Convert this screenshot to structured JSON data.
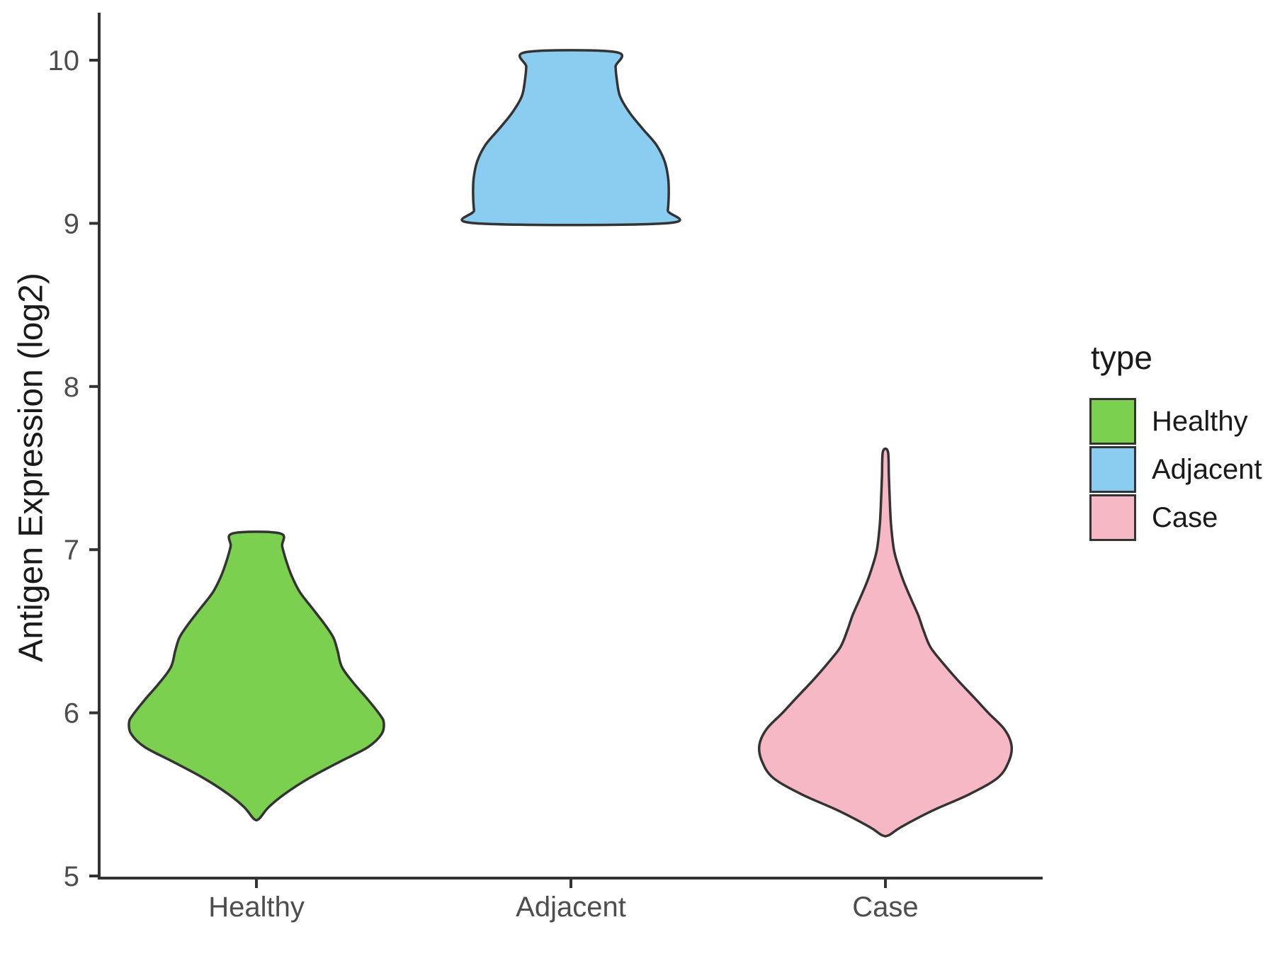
{
  "figure": {
    "background": "#ffffff"
  },
  "chart_data": {
    "type": "violin",
    "title": "",
    "xlabel": "",
    "ylabel": "Antigen Expression (log2)",
    "categories": [
      "Healthy",
      "Adjacent",
      "Case"
    ],
    "yticks": [
      5,
      6,
      7,
      8,
      9,
      10
    ],
    "ylim": [
      5,
      10.3
    ],
    "grid": false,
    "stroke_color": "#333333",
    "axis_color": "#333333",
    "tick_text_color": "#4d4d4d",
    "title_text_color": "#1a1a1a",
    "legend": {
      "title": "type",
      "position": "right",
      "entries": [
        {
          "label": "Healthy",
          "color": "#7cd04f"
        },
        {
          "label": "Adjacent",
          "color": "#8bcdf1"
        },
        {
          "label": "Case",
          "color": "#f5b8c4"
        }
      ]
    },
    "profile_units": "each profile point is [y_value, halfwidth_in_category_axis_units]",
    "series": [
      {
        "name": "Healthy",
        "x": 0,
        "color": "#7cd04f",
        "data_range": {
          "min": 5.35,
          "max": 7.1,
          "peak_density_at": 5.95
        },
        "profile": [
          [
            7.1,
            0.075
          ],
          [
            7.02,
            0.082
          ],
          [
            6.93,
            0.095
          ],
          [
            6.84,
            0.112
          ],
          [
            6.74,
            0.138
          ],
          [
            6.64,
            0.178
          ],
          [
            6.54,
            0.218
          ],
          [
            6.46,
            0.245
          ],
          [
            6.38,
            0.258
          ],
          [
            6.28,
            0.272
          ],
          [
            6.18,
            0.31
          ],
          [
            6.08,
            0.355
          ],
          [
            5.99,
            0.392
          ],
          [
            5.94,
            0.405
          ],
          [
            5.87,
            0.398
          ],
          [
            5.79,
            0.355
          ],
          [
            5.7,
            0.265
          ],
          [
            5.6,
            0.168
          ],
          [
            5.5,
            0.088
          ],
          [
            5.42,
            0.038
          ],
          [
            5.35,
            0.008
          ]
        ]
      },
      {
        "name": "Adjacent",
        "x": 1,
        "color": "#8bcdf1",
        "data_range": {
          "min": 9.0,
          "max": 10.05,
          "peak_density_at": 9.2
        },
        "profile": [
          [
            10.05,
            0.142
          ],
          [
            9.96,
            0.142
          ],
          [
            9.88,
            0.146
          ],
          [
            9.78,
            0.156
          ],
          [
            9.68,
            0.186
          ],
          [
            9.58,
            0.228
          ],
          [
            9.48,
            0.272
          ],
          [
            9.38,
            0.298
          ],
          [
            9.28,
            0.309
          ],
          [
            9.18,
            0.311
          ],
          [
            9.08,
            0.308
          ],
          [
            9.0,
            0.3
          ]
        ]
      },
      {
        "name": "Case",
        "x": 2,
        "color": "#f5b8c4",
        "data_range": {
          "min": 5.25,
          "max": 7.6,
          "peak_density_at": 5.8
        },
        "profile": [
          [
            7.6,
            0.008
          ],
          [
            7.45,
            0.011
          ],
          [
            7.3,
            0.014
          ],
          [
            7.15,
            0.018
          ],
          [
            7.0,
            0.027
          ],
          [
            6.9,
            0.041
          ],
          [
            6.8,
            0.059
          ],
          [
            6.7,
            0.081
          ],
          [
            6.6,
            0.104
          ],
          [
            6.5,
            0.122
          ],
          [
            6.4,
            0.144
          ],
          [
            6.3,
            0.185
          ],
          [
            6.2,
            0.23
          ],
          [
            6.1,
            0.279
          ],
          [
            6.0,
            0.327
          ],
          [
            5.9,
            0.378
          ],
          [
            5.8,
            0.401
          ],
          [
            5.7,
            0.392
          ],
          [
            5.6,
            0.356
          ],
          [
            5.5,
            0.266
          ],
          [
            5.4,
            0.149
          ],
          [
            5.3,
            0.05
          ],
          [
            5.25,
            0.011
          ]
        ]
      }
    ]
  }
}
